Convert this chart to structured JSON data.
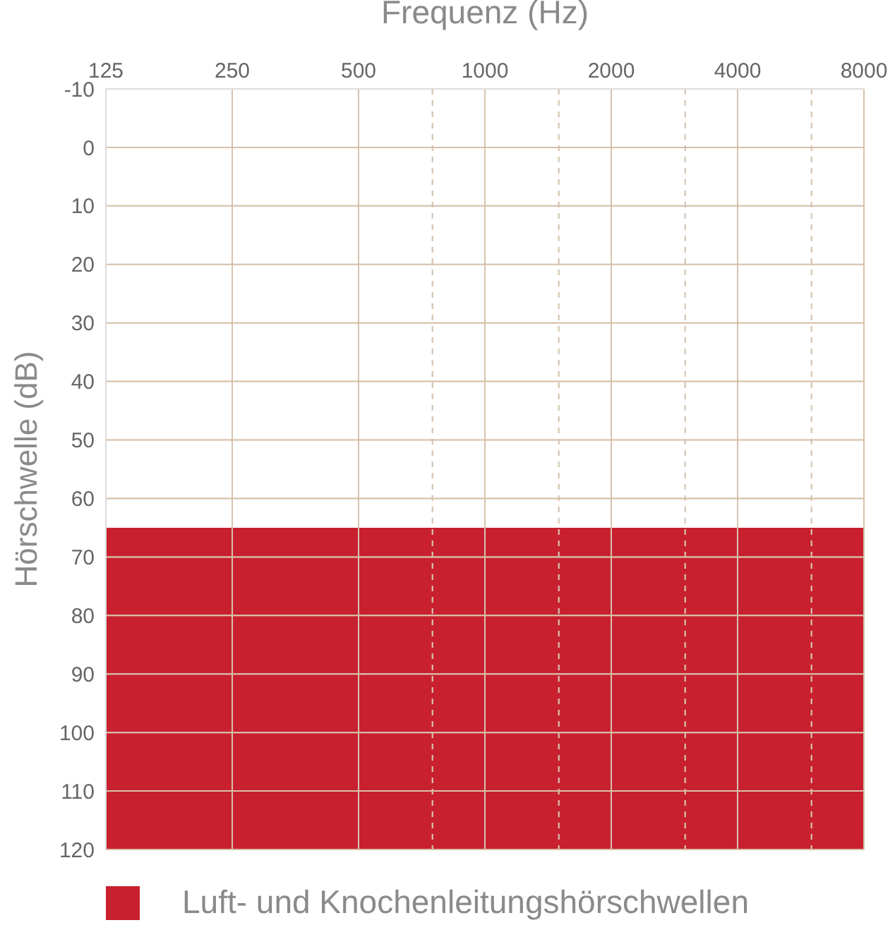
{
  "chart_data": {
    "type": "line",
    "xlabel": "Frequenz (Hz)",
    "ylabel": "Hörschwelle (dB)",
    "bands": [
      {
        "axis": "y",
        "from": 65,
        "to": 120,
        "label": "Luft- und Knochenleitungshörschwellen",
        "color": "#c8202f"
      }
    ],
    "log": "x",
    "xlim": [
      125,
      8000
    ],
    "xticks": [
      125,
      250,
      500,
      {
        "value": 750,
        "label": null
      },
      1000,
      {
        "value": 1500,
        "label": null
      },
      2000,
      {
        "value": 3000,
        "label": null
      },
      4000,
      {
        "value": 6000,
        "label": null
      },
      8000
    ],
    "ylim": [
      120,
      -10
    ],
    "yticks": [
      -10,
      0,
      10,
      20,
      30,
      40,
      50,
      60,
      70,
      80,
      90,
      100,
      110,
      120
    ],
    "grid": true,
    "legend": "bottom"
  }
}
